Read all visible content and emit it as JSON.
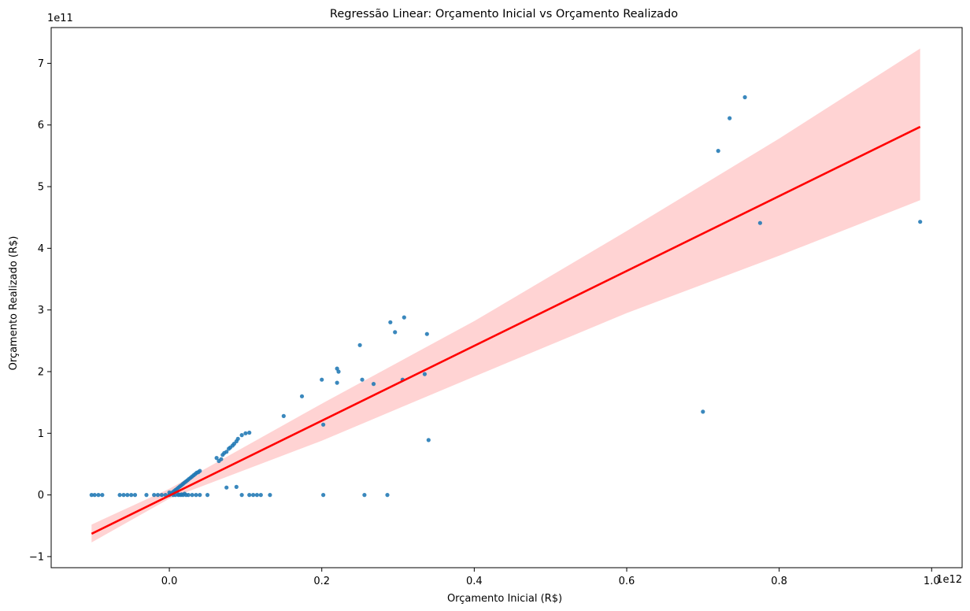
{
  "chart_data": {
    "type": "scatter",
    "title": "Regressão Linear: Orçamento Inicial vs Orçamento Realizado",
    "xlabel": "Orçamento Inicial (R$)",
    "ylabel": "Orçamento Realizado (R$)",
    "x_offset_text": "1e12",
    "y_offset_text": "1e11",
    "x_ticks": [
      0.0,
      0.2,
      0.4,
      0.6,
      0.8,
      1.0
    ],
    "x_tick_labels": [
      "0.0",
      "0.2",
      "0.4",
      "0.6",
      "0.8",
      "1.0"
    ],
    "y_ticks": [
      -1,
      0,
      1,
      2,
      3,
      4,
      5,
      6,
      7
    ],
    "y_tick_labels": [
      "−1",
      "0",
      "1",
      "2",
      "3",
      "4",
      "5",
      "6",
      "7"
    ],
    "xlim": [
      -0.155,
      1.04
    ],
    "ylim": [
      -1.18,
      7.58
    ],
    "grid": false,
    "colors": {
      "points": "#1f77b4",
      "line": "#ff0000",
      "band": "#ffd3d3"
    },
    "series": [
      {
        "kind": "points",
        "x": [
          -0.102,
          -0.098,
          -0.093,
          -0.088,
          -0.065,
          -0.06,
          -0.055,
          -0.05,
          -0.045,
          -0.03,
          -0.02,
          -0.015,
          -0.01,
          -0.005,
          0.0,
          0.0,
          0.002,
          0.004,
          0.006,
          0.008,
          0.01,
          0.012,
          0.014,
          0.016,
          0.018,
          0.02,
          0.022,
          0.024,
          0.026,
          0.028,
          0.03,
          0.032,
          0.034,
          0.036,
          0.038,
          0.04,
          0.005,
          0.008,
          0.012,
          0.015,
          0.018,
          0.022,
          0.025,
          0.03,
          0.035,
          0.04,
          0.012,
          0.016,
          0.02,
          0.05,
          0.062,
          0.065,
          0.068,
          0.07,
          0.072,
          0.075,
          0.078,
          0.08,
          0.083,
          0.085,
          0.088,
          0.09,
          0.095,
          0.1,
          0.105,
          0.075,
          0.088,
          0.095,
          0.105,
          0.11,
          0.115,
          0.12,
          0.132,
          0.15,
          0.174,
          0.2,
          0.202,
          0.202,
          0.22,
          0.222,
          0.22,
          0.25,
          0.253,
          0.256,
          0.268,
          0.286,
          0.29,
          0.296,
          0.306,
          0.308,
          0.335,
          0.338,
          0.34,
          0.7,
          0.72,
          0.735,
          0.755,
          0.775,
          0.985
        ],
        "y": [
          0.0,
          0.0,
          0.0,
          0.0,
          0.0,
          0.0,
          0.0,
          0.0,
          0.0,
          0.0,
          0.0,
          0.0,
          0.0,
          0.0,
          0.0,
          0.04,
          0.02,
          0.04,
          0.06,
          0.08,
          0.1,
          0.12,
          0.14,
          0.16,
          0.18,
          0.2,
          0.22,
          0.24,
          0.26,
          0.28,
          0.3,
          0.32,
          0.34,
          0.36,
          0.37,
          0.39,
          0.0,
          0.0,
          0.0,
          0.0,
          0.0,
          0.0,
          0.0,
          0.0,
          0.0,
          0.0,
          0.01,
          0.01,
          0.02,
          0.0,
          0.6,
          0.55,
          0.58,
          0.65,
          0.68,
          0.7,
          0.75,
          0.77,
          0.8,
          0.83,
          0.87,
          0.91,
          0.97,
          1.0,
          1.01,
          0.12,
          0.13,
          0.0,
          0.0,
          0.0,
          0.0,
          0.0,
          0.0,
          1.28,
          1.6,
          1.87,
          1.14,
          0.0,
          2.05,
          2.0,
          1.82,
          2.43,
          1.87,
          0.0,
          1.8,
          0.0,
          2.8,
          2.64,
          1.87,
          2.88,
          1.96,
          2.61,
          0.89,
          1.35,
          5.58,
          6.11,
          6.45,
          4.41,
          4.43
        ]
      }
    ],
    "regression": {
      "x": [
        -0.102,
        0.985
      ],
      "y": [
        -0.63,
        5.97
      ],
      "ci_lower": [
        [
          -0.102,
          -0.77
        ],
        [
          0.0,
          -0.06
        ],
        [
          0.2,
          0.88
        ],
        [
          0.4,
          1.92
        ],
        [
          0.6,
          2.95
        ],
        [
          0.8,
          3.88
        ],
        [
          0.985,
          4.78
        ]
      ],
      "ci_upper": [
        [
          -0.102,
          -0.48
        ],
        [
          0.0,
          0.1
        ],
        [
          0.2,
          1.48
        ],
        [
          0.4,
          2.82
        ],
        [
          0.6,
          4.28
        ],
        [
          0.8,
          5.78
        ],
        [
          0.985,
          7.24
        ]
      ]
    }
  }
}
